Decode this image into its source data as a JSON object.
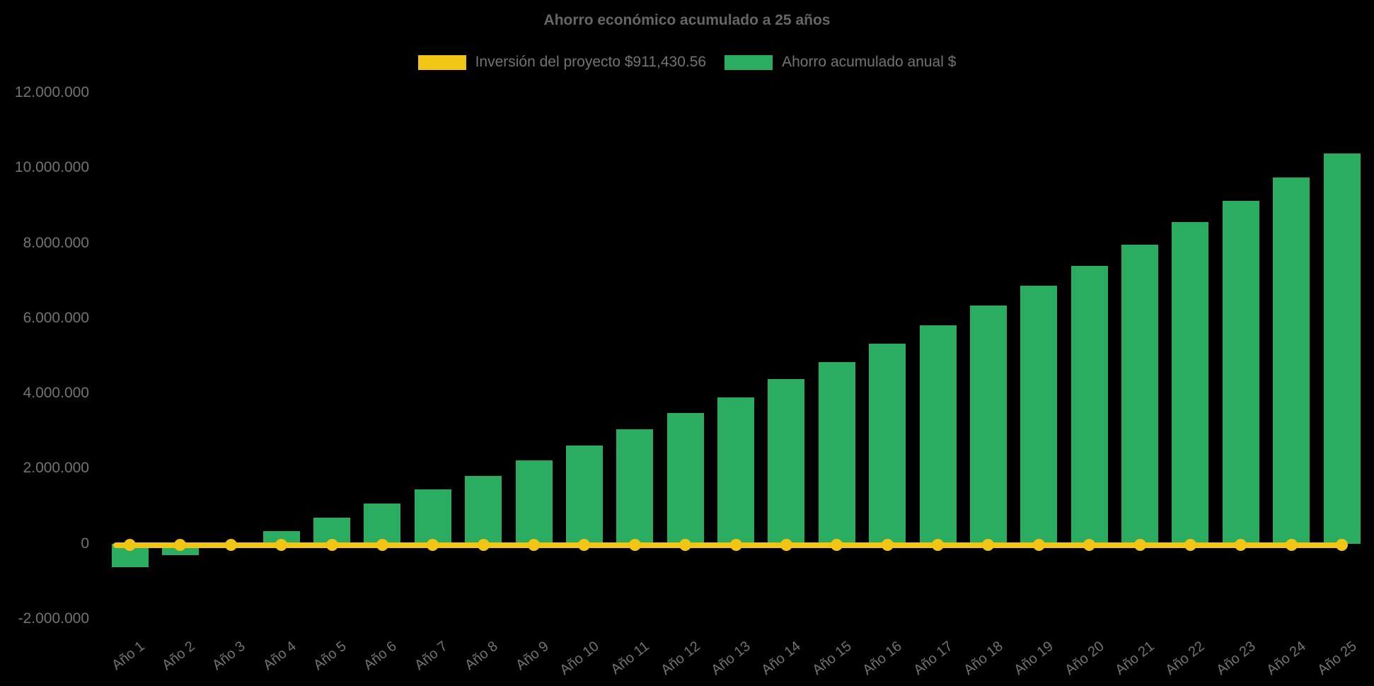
{
  "page": {
    "background": "#000000"
  },
  "header": {
    "title": "Ahorro económico acumulado a 25 años"
  },
  "legend": {
    "items": [
      {
        "label": "Inversión del proyecto $911,430.56",
        "color": "#F0C513",
        "series_type": "line"
      },
      {
        "label": "Ahorro acumulado anual $",
        "color": "#2BAD61",
        "series_type": "bar"
      }
    ]
  },
  "chart_data": {
    "type": "bar",
    "title": "Ahorro económico acumulado a 25 años",
    "categories": [
      "Año 1",
      "Año 2",
      "Año 3",
      "Año 4",
      "Año 5",
      "Año 6",
      "Año 7",
      "Año 8",
      "Año 9",
      "Año 10",
      "Año 11",
      "Año 12",
      "Año 13",
      "Año 14",
      "Año 15",
      "Año 16",
      "Año 17",
      "Año 18",
      "Año 19",
      "Año 20",
      "Año 21",
      "Año 22",
      "Año 23",
      "Año 24",
      "Año 25"
    ],
    "series": [
      {
        "name": "Inversión del proyecto $911,430.56",
        "type": "line",
        "color": "#F0C513",
        "values": [
          0,
          0,
          0,
          0,
          0,
          0,
          0,
          0,
          0,
          0,
          0,
          0,
          0,
          0,
          0,
          0,
          0,
          0,
          0,
          0,
          0,
          0,
          0,
          0,
          0
        ]
      },
      {
        "name": "Ahorro acumulado anual $",
        "type": "bar",
        "color": "#2BAD61",
        "values": [
          -630000,
          -300000,
          20000,
          340000,
          700000,
          1060000,
          1450000,
          1810000,
          2220000,
          2610000,
          3040000,
          3470000,
          3890000,
          4380000,
          4830000,
          5320000,
          5810000,
          6340000,
          6870000,
          7400000,
          7960000,
          8560000,
          9130000,
          9740000,
          10380000
        ]
      }
    ],
    "xlabel": "",
    "ylabel": "",
    "ylim": [
      -2000000,
      12000000
    ],
    "yticks": [
      12000000,
      10000000,
      8000000,
      6000000,
      4000000,
      2000000,
      0,
      -2000000
    ],
    "ytick_labels": [
      "12.000.000",
      "10.000.000",
      "8.000.000",
      "6.000.000",
      "4.000.000",
      "2.000.000",
      "0",
      "-2.000.000"
    ],
    "grid": false,
    "legend_position": "top",
    "x_label_rotation": -38,
    "text_color": "#737373",
    "background": "#000000"
  }
}
